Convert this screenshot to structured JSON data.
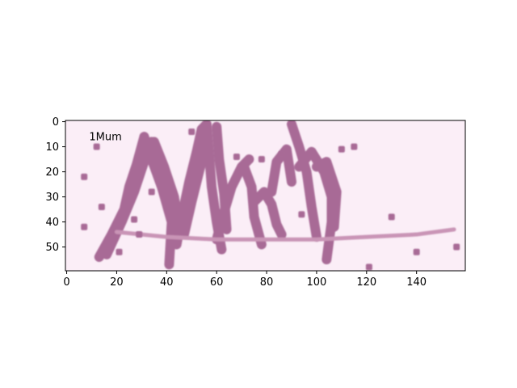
{
  "chart_data": {
    "type": "image",
    "title": "",
    "xlabel": "",
    "ylabel": "",
    "xlim": [
      -0.5,
      159.5
    ],
    "ylim": [
      59.5,
      -0.5
    ],
    "y_inverted": true,
    "grid": false,
    "xticks": [
      0,
      20,
      40,
      60,
      80,
      100,
      120,
      140
    ],
    "yticks": [
      0,
      10,
      20,
      30,
      40,
      50
    ],
    "annotation": {
      "text": "1Mum",
      "x": 9,
      "y": 6
    },
    "image_colors": {
      "background": "#fbeef7",
      "ink": "#a86a96",
      "ink_light": "#c994b6"
    },
    "captcha_text": "1Mum",
    "strokes": [
      [
        [
          13,
          54
        ],
        [
          18,
          45
        ],
        [
          23,
          35
        ],
        [
          25,
          26
        ],
        [
          28,
          17
        ],
        [
          31,
          6
        ]
      ],
      [
        [
          16,
          53
        ],
        [
          22,
          40
        ],
        [
          27,
          28
        ],
        [
          31,
          16
        ],
        [
          34,
          8
        ]
      ],
      [
        [
          31,
          6
        ],
        [
          34,
          15
        ],
        [
          38,
          26
        ],
        [
          42,
          40
        ],
        [
          41,
          57
        ]
      ],
      [
        [
          35,
          8
        ],
        [
          39,
          18
        ],
        [
          43,
          30
        ],
        [
          45,
          43
        ]
      ],
      [
        [
          44,
          49
        ],
        [
          46,
          38
        ],
        [
          49,
          24
        ],
        [
          52,
          12
        ],
        [
          54,
          3
        ],
        [
          56,
          1
        ]
      ],
      [
        [
          47,
          45
        ],
        [
          50,
          32
        ],
        [
          53,
          20
        ],
        [
          56,
          8
        ]
      ],
      [
        [
          56,
          1
        ],
        [
          57,
          13
        ],
        [
          58,
          26
        ],
        [
          60,
          40
        ],
        [
          62,
          51
        ]
      ],
      [
        [
          60,
          2
        ],
        [
          61,
          15
        ],
        [
          63,
          29
        ],
        [
          64,
          43
        ]
      ],
      [
        [
          60,
          47
        ],
        [
          63,
          36
        ],
        [
          66,
          26
        ],
        [
          70,
          18
        ],
        [
          73,
          15
        ]
      ],
      [
        [
          71,
          18
        ],
        [
          74,
          26
        ],
        [
          75,
          38
        ],
        [
          78,
          49
        ]
      ],
      [
        [
          75,
          32
        ],
        [
          79,
          28
        ],
        [
          82,
          33
        ],
        [
          84,
          41
        ],
        [
          86,
          45
        ]
      ],
      [
        [
          82,
          28
        ],
        [
          84,
          16
        ],
        [
          88,
          11
        ],
        [
          90,
          24
        ]
      ],
      [
        [
          90,
          1
        ],
        [
          93,
          10
        ],
        [
          96,
          20
        ],
        [
          98,
          34
        ],
        [
          100,
          46
        ]
      ],
      [
        [
          93,
          18
        ],
        [
          98,
          12
        ],
        [
          103,
          20
        ],
        [
          106,
          30
        ],
        [
          106,
          40
        ],
        [
          104,
          55
        ]
      ],
      [
        [
          100,
          18
        ],
        [
          104,
          16
        ],
        [
          108,
          28
        ],
        [
          107,
          42
        ]
      ],
      [
        [
          20,
          44
        ],
        [
          40,
          46
        ],
        [
          60,
          47
        ],
        [
          80,
          47
        ],
        [
          100,
          47
        ],
        [
          120,
          46
        ],
        [
          140,
          45
        ],
        [
          155,
          43
        ]
      ]
    ],
    "specks": [
      [
        12,
        10
      ],
      [
        7,
        22
      ],
      [
        14,
        34
      ],
      [
        7,
        42
      ],
      [
        21,
        52
      ],
      [
        27,
        39
      ],
      [
        29,
        45
      ],
      [
        34,
        28
      ],
      [
        50,
        4
      ],
      [
        68,
        14
      ],
      [
        78,
        15
      ],
      [
        86,
        13
      ],
      [
        94,
        37
      ],
      [
        110,
        11
      ],
      [
        115,
        10
      ],
      [
        121,
        58
      ],
      [
        130,
        38
      ],
      [
        140,
        52
      ],
      [
        156,
        50
      ]
    ]
  }
}
